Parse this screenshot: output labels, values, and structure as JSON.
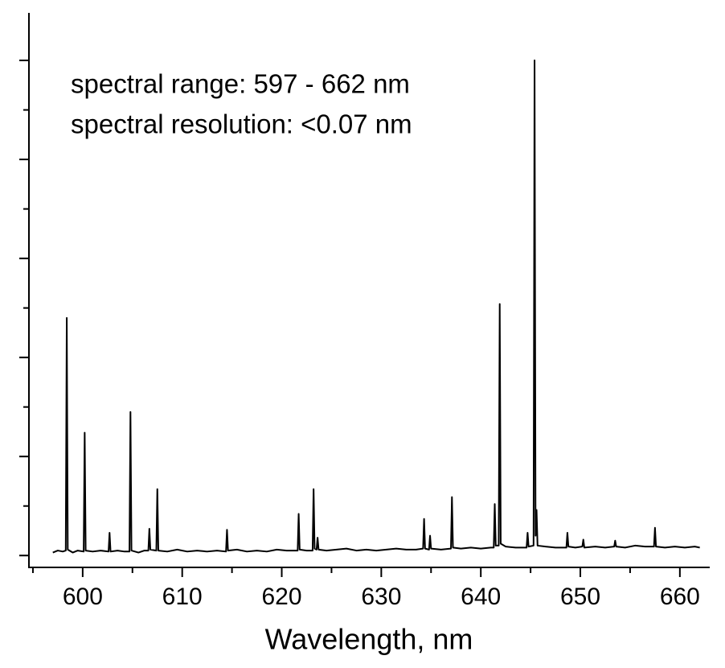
{
  "chart_data": {
    "type": "line",
    "x_label": "Wavelength, nm",
    "annotations": [
      "spectral range: 597 - 662 nm",
      "spectral resolution: <0.07 nm"
    ],
    "xlim": [
      594.6,
      663
    ],
    "xticks": [
      600,
      610,
      620,
      630,
      640,
      650,
      660
    ],
    "xminorticks": [
      595,
      605,
      615,
      625,
      635,
      645,
      655
    ],
    "ylim": [
      -0.12,
      5.48
    ],
    "yticks": [
      0,
      1,
      2,
      3,
      4,
      5
    ],
    "yminorticks": [
      0.5,
      1.5,
      2.5,
      3.5,
      4.5,
      5.5
    ],
    "series": [
      {
        "color": "#000000",
        "x": [
          597.0,
          597.5,
          598.0,
          598.3,
          598.4,
          598.5,
          599.0,
          599.5,
          600.1,
          600.2,
          600.3,
          601.0,
          601.8,
          602.6,
          602.7,
          602.8,
          603.5,
          604.2,
          604.7,
          604.8,
          604.9,
          605.6,
          606.2,
          606.6,
          606.7,
          606.8,
          607.4,
          607.5,
          607.6,
          608.5,
          609.5,
          610.5,
          611.5,
          612.5,
          613.5,
          614.4,
          614.5,
          614.6,
          615.5,
          616.5,
          617.5,
          618.5,
          619.5,
          620.5,
          621.6,
          621.7,
          621.8,
          622.5,
          623.1,
          623.2,
          623.3,
          623.5,
          623.6,
          623.7,
          624.5,
          625.5,
          626.5,
          627.5,
          628.5,
          629.5,
          630.5,
          631.5,
          632.5,
          633.5,
          634.2,
          634.3,
          634.4,
          634.8,
          634.9,
          635.0,
          636.0,
          637.0,
          637.1,
          637.2,
          638.0,
          639.0,
          640.0,
          641.0,
          641.3,
          641.4,
          641.5,
          641.8,
          641.9,
          642.0,
          642.5,
          643.5,
          644.6,
          644.7,
          644.8,
          645.3,
          645.4,
          645.5,
          645.6,
          645.7,
          646.5,
          647.5,
          648.6,
          648.7,
          648.8,
          649.5,
          650.2,
          650.3,
          650.4,
          651.5,
          652.5,
          653.4,
          653.5,
          653.6,
          654.5,
          655.5,
          656.5,
          657.4,
          657.5,
          657.6,
          658.5,
          659.5,
          660.5,
          661.5,
          662.0
        ],
        "values": [
          0.03,
          0.05,
          0.04,
          0.05,
          2.4,
          0.06,
          0.03,
          0.05,
          0.04,
          1.24,
          0.05,
          0.04,
          0.05,
          0.04,
          0.23,
          0.04,
          0.05,
          0.04,
          0.04,
          1.45,
          0.05,
          0.03,
          0.05,
          0.05,
          0.27,
          0.06,
          0.05,
          0.67,
          0.05,
          0.04,
          0.06,
          0.04,
          0.05,
          0.04,
          0.05,
          0.04,
          0.26,
          0.05,
          0.06,
          0.04,
          0.05,
          0.04,
          0.06,
          0.05,
          0.05,
          0.42,
          0.06,
          0.05,
          0.05,
          0.67,
          0.07,
          0.06,
          0.18,
          0.06,
          0.05,
          0.06,
          0.07,
          0.05,
          0.06,
          0.05,
          0.06,
          0.07,
          0.06,
          0.06,
          0.07,
          0.37,
          0.07,
          0.06,
          0.2,
          0.07,
          0.06,
          0.07,
          0.59,
          0.08,
          0.07,
          0.08,
          0.07,
          0.08,
          0.08,
          0.52,
          0.1,
          0.1,
          2.54,
          0.12,
          0.09,
          0.08,
          0.08,
          0.23,
          0.09,
          0.1,
          5.0,
          0.2,
          0.46,
          0.1,
          0.09,
          0.08,
          0.08,
          0.23,
          0.09,
          0.08,
          0.09,
          0.16,
          0.08,
          0.09,
          0.08,
          0.09,
          0.15,
          0.09,
          0.08,
          0.1,
          0.09,
          0.09,
          0.28,
          0.09,
          0.08,
          0.09,
          0.08,
          0.09,
          0.08
        ]
      }
    ]
  }
}
